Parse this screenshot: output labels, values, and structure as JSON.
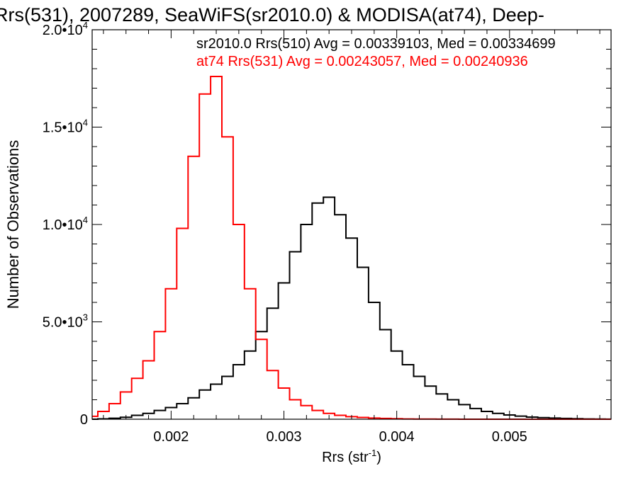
{
  "chart_data": {
    "type": "line",
    "title": "Rrs(531), 2007289, SeaWiFS(sr2010.0) & MODISA(at74), Deep-",
    "xlabel": "Rrs (str",
    "xlabel_sup": "-1",
    "xlabel_end": ")",
    "ylabel": "Number of Observations",
    "xlim": [
      0.0013,
      0.0059
    ],
    "ylim": [
      0,
      20000
    ],
    "grid": false,
    "x_ticks": [
      {
        "value": 0.002,
        "label": "0.002"
      },
      {
        "value": 0.003,
        "label": "0.003"
      },
      {
        "value": 0.004,
        "label": "0.004"
      },
      {
        "value": 0.005,
        "label": "0.005"
      }
    ],
    "y_ticks": [
      {
        "value": 0,
        "base": "0",
        "exp": ""
      },
      {
        "value": 5000,
        "base": "5.0•10",
        "exp": "3"
      },
      {
        "value": 10000,
        "base": "1.0•10",
        "exp": "4"
      },
      {
        "value": 15000,
        "base": "1.5•10",
        "exp": "4"
      },
      {
        "value": 20000,
        "base": "2.0•10",
        "exp": "4"
      }
    ],
    "annotations": [
      {
        "text": "sr2010.0 Rrs(510) Avg = 0.00339103, Med = 0.00334699",
        "color": "#000000"
      },
      {
        "text": "at74 Rrs(531) Avg = 0.00243057, Med = 0.00240936",
        "color": "#ff0000"
      }
    ],
    "series": [
      {
        "color": "#000000",
        "x": [
          0.0013,
          0.0014,
          0.0015,
          0.0016,
          0.0017,
          0.0018,
          0.0019,
          0.002,
          0.0021,
          0.0022,
          0.0023,
          0.0024,
          0.0025,
          0.0026,
          0.0027,
          0.0028,
          0.0029,
          0.003,
          0.0031,
          0.0032,
          0.0033,
          0.0034,
          0.0035,
          0.0036,
          0.0037,
          0.0038,
          0.0039,
          0.004,
          0.0041,
          0.0042,
          0.0043,
          0.0044,
          0.0045,
          0.0046,
          0.0047,
          0.0048,
          0.0049,
          0.005,
          0.0051,
          0.0052,
          0.0053,
          0.0054,
          0.0055,
          0.0056,
          0.0057,
          0.0058,
          0.0059
        ],
        "y": [
          0,
          20,
          50,
          100,
          200,
          300,
          450,
          600,
          800,
          1100,
          1500,
          1800,
          2200,
          2800,
          3500,
          4500,
          5700,
          7000,
          8600,
          10000,
          11100,
          11400,
          10500,
          9300,
          7800,
          6000,
          4600,
          3500,
          2800,
          2200,
          1700,
          1300,
          1000,
          750,
          550,
          400,
          300,
          220,
          160,
          110,
          80,
          60,
          40,
          25,
          15,
          10,
          5
        ]
      },
      {
        "color": "#ff0000",
        "x": [
          0.0013,
          0.0014,
          0.0015,
          0.0016,
          0.0017,
          0.0018,
          0.0019,
          0.002,
          0.0021,
          0.0022,
          0.0023,
          0.0024,
          0.0025,
          0.0026,
          0.0027,
          0.0028,
          0.0029,
          0.003,
          0.0031,
          0.0032,
          0.0033,
          0.0034,
          0.0035,
          0.0036,
          0.0037,
          0.0038,
          0.0039,
          0.004,
          0.0041,
          0.0042,
          0.0043,
          0.0044,
          0.0045,
          0.0046,
          0.0047,
          0.0048,
          0.0049,
          0.005,
          0.0051,
          0.0052,
          0.0053,
          0.0054,
          0.0055,
          0.0056,
          0.0057,
          0.0058,
          0.0059
        ],
        "y": [
          150,
          400,
          800,
          1400,
          2100,
          3000,
          4500,
          6700,
          9800,
          13500,
          16700,
          17600,
          14500,
          10000,
          6700,
          4100,
          2500,
          1600,
          1000,
          700,
          450,
          300,
          200,
          130,
          90,
          60,
          40,
          25,
          15,
          10,
          6,
          4,
          2,
          1,
          0,
          0,
          0,
          0,
          0,
          0,
          0,
          0,
          0,
          0,
          0,
          0,
          0
        ]
      }
    ]
  }
}
